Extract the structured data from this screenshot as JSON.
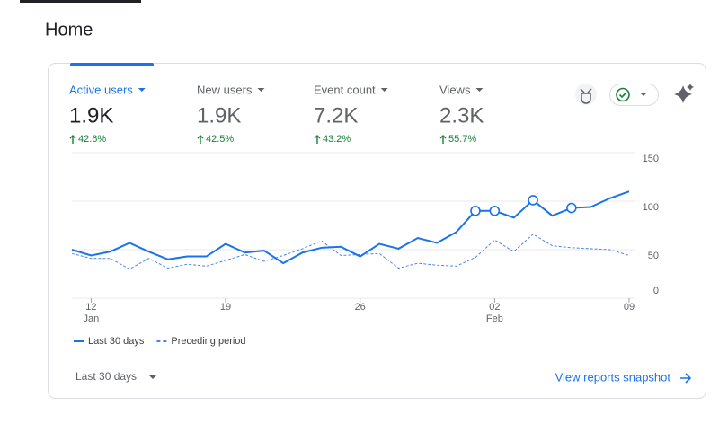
{
  "header": {
    "title": "Home"
  },
  "metrics": [
    {
      "label": "Active users",
      "value": "1.9K",
      "change": "42.6%"
    },
    {
      "label": "New users",
      "value": "1.9K",
      "change": "42.5%"
    },
    {
      "label": "Event count",
      "value": "7.2K",
      "change": "43.2%"
    },
    {
      "label": "Views",
      "value": "2.3K",
      "change": "55.7%"
    }
  ],
  "chart_data": {
    "type": "line",
    "categories": [
      null,
      "12",
      null,
      null,
      null,
      null,
      null,
      null,
      "19",
      null,
      null,
      null,
      null,
      null,
      null,
      "26",
      null,
      null,
      null,
      null,
      null,
      null,
      "02",
      null,
      null,
      null,
      null,
      null,
      null,
      "09"
    ],
    "category_months": [
      null,
      "Jan",
      null,
      null,
      null,
      null,
      null,
      null,
      null,
      null,
      null,
      null,
      null,
      null,
      null,
      null,
      null,
      null,
      null,
      null,
      null,
      null,
      "Feb",
      null,
      null,
      null,
      null,
      null,
      null,
      null
    ],
    "ylim": [
      0,
      150
    ],
    "yticks": [
      150,
      100,
      50,
      0
    ],
    "grid": true,
    "series": [
      {
        "name": "Last 30 days",
        "color": "#1a73e8",
        "dash": false,
        "values": [
          50,
          44,
          48,
          57,
          48,
          40,
          43,
          43,
          56,
          47,
          49,
          36,
          47,
          52,
          53,
          43,
          56,
          51,
          62,
          57,
          68,
          90,
          90,
          83,
          101,
          85,
          93,
          94,
          103,
          110
        ],
        "marked_points": [
          21,
          22,
          24,
          26
        ]
      },
      {
        "name": "Preceding period",
        "color": "#4a86e8",
        "dash": true,
        "values": [
          46,
          41,
          41,
          30,
          41,
          31,
          35,
          33,
          39,
          45,
          38,
          44,
          51,
          59,
          44,
          45,
          46,
          31,
          36,
          34,
          33,
          42,
          60,
          48,
          66,
          54,
          52,
          51,
          50,
          44
        ]
      }
    ]
  },
  "footer": {
    "range": "Last 30 days",
    "link": "View reports snapshot"
  }
}
